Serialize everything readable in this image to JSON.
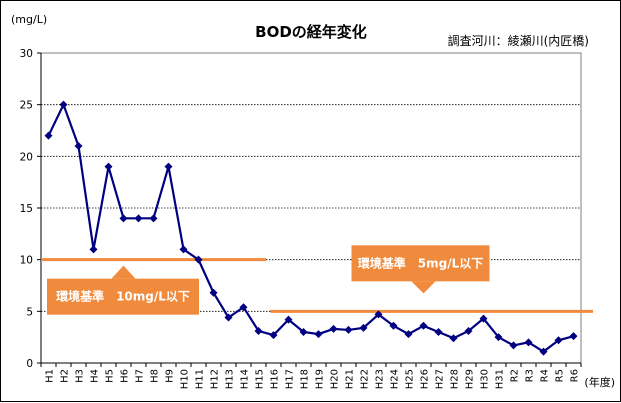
{
  "chart_data": {
    "type": "line",
    "title": "BODの経年変化",
    "subtitle": "調査河川：綾瀬川(内匠橋)",
    "ylabel": "(mg/L)",
    "xlabel": "(年度)",
    "ylim": [
      0,
      30
    ],
    "yticks": [
      0,
      5,
      10,
      15,
      20,
      25,
      30
    ],
    "grid": true,
    "categories": [
      "H1",
      "H2",
      "H3",
      "H4",
      "H5",
      "H6",
      "H7",
      "H8",
      "H9",
      "H10",
      "H11",
      "H12",
      "H13",
      "H14",
      "H15",
      "H16",
      "H17",
      "H18",
      "H19",
      "H20",
      "H21",
      "H22",
      "H23",
      "H24",
      "H25",
      "H26",
      "H27",
      "H28",
      "H29",
      "H30",
      "H31",
      "R2",
      "R3",
      "R4",
      "R5",
      "R6"
    ],
    "series": [
      {
        "values": [
          22,
          25,
          21,
          11,
          19,
          14,
          14,
          14,
          19,
          11,
          10,
          6.8,
          4.4,
          5.4,
          3.1,
          2.7,
          4.2,
          3.0,
          2.8,
          3.3,
          3.2,
          3.4,
          4.7,
          3.6,
          2.8,
          3.6,
          3.0,
          2.4,
          3.1,
          4.3,
          2.5,
          1.7,
          2.0,
          1.1,
          2.2,
          2.6
        ],
        "color": "#000080"
      }
    ],
    "standards": [
      {
        "label": "環境基準　10mg/L以下",
        "value": 10,
        "from": "H1",
        "to": "H15",
        "color": "#F08A3C",
        "arrow": "up"
      },
      {
        "label": "環境基準　5mg/L以下",
        "value": 5,
        "from": "H16",
        "to": "R6",
        "color": "#F08A3C",
        "arrow": "down"
      }
    ]
  }
}
